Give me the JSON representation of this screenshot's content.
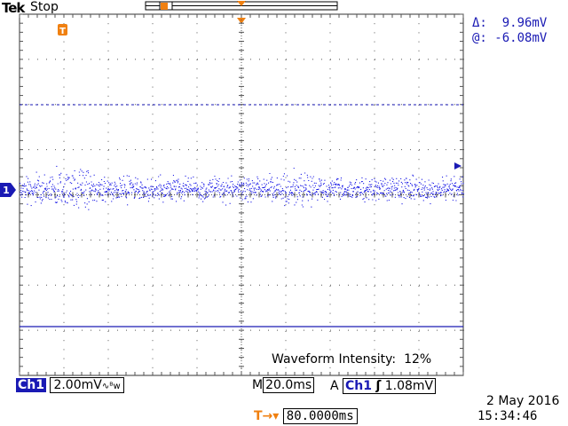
{
  "header": {
    "brand": "Tek",
    "acquisition_state": "Stop"
  },
  "cursor_readout": {
    "delta_label": "Δ:",
    "delta_value": "9.96mV",
    "at_label": "@:",
    "at_value": "-6.08mV"
  },
  "display": {
    "intensity_label": "Waveform Intensity:",
    "intensity_value": "12%",
    "channel_marker": "1",
    "trigger_marker": "T",
    "waveform_color": "#1a1ae6",
    "grid_color": "#555555"
  },
  "status_bar": {
    "channel": "Ch1",
    "volts_per_div": "2.00mV",
    "coupling_icon": "bandwidth-limit-icon",
    "coupling_glyph": "∿ᴮw",
    "timebase_prefix": "M",
    "time_per_div": "20.0ms",
    "trigger_mode": "A",
    "trigger_channel": "Ch1",
    "trigger_slope_glyph": "ʃ",
    "trigger_level": "1.08mV"
  },
  "footer": {
    "delay_icon_glyph": "T→▾",
    "delay_value": "80.0000ms",
    "date": "2 May 2016",
    "time": "15:34:46"
  }
}
